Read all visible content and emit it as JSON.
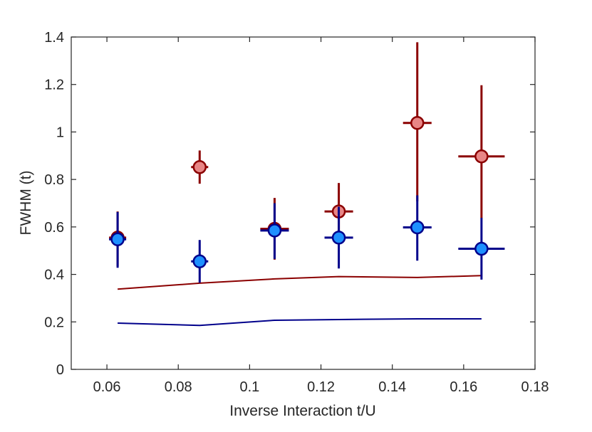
{
  "chart_data": {
    "type": "scatter",
    "xlabel": "Inverse Interaction t/U",
    "ylabel": "FWHM (t)",
    "xlim": [
      0.05,
      0.18
    ],
    "ylim": [
      0,
      1.4
    ],
    "xticks": [
      0.06,
      0.08,
      0.1,
      0.12,
      0.14,
      0.16,
      0.18
    ],
    "xtick_labels": [
      "0.06",
      "0.08",
      "0.1",
      "0.12",
      "0.14",
      "0.16",
      "0.18"
    ],
    "yticks": [
      0,
      0.2,
      0.4,
      0.6,
      0.8,
      1.0,
      1.2,
      1.4
    ],
    "ytick_labels": [
      "0",
      "0.2",
      "0.4",
      "0.6",
      "0.8",
      "1",
      "1.2",
      "1.4"
    ],
    "grid": false,
    "legend": "none",
    "series": [
      {
        "kind": "points",
        "color": "#8b0000",
        "fill": "#e88686",
        "x": [
          0.063,
          0.086,
          0.107,
          0.125,
          0.147,
          0.165
        ],
        "y": [
          0.555,
          0.852,
          0.592,
          0.665,
          1.038,
          0.897
        ],
        "yerr_low": [
          0.12,
          0.07,
          0.13,
          0.13,
          0.33,
          0.26
        ],
        "yerr_high": [
          0.11,
          0.07,
          0.13,
          0.12,
          0.34,
          0.3
        ],
        "xerr": [
          0.002,
          0.001,
          0.004,
          0.004,
          0.004,
          0.0065
        ]
      },
      {
        "kind": "points",
        "color": "#00008b",
        "fill": "#1e90ff",
        "x": [
          0.063,
          0.086,
          0.107,
          0.125,
          0.147,
          0.165
        ],
        "y": [
          0.548,
          0.455,
          0.585,
          0.555,
          0.598,
          0.508
        ],
        "yerr_low": [
          0.12,
          0.09,
          0.12,
          0.13,
          0.14,
          0.13
        ],
        "yerr_high": [
          0.115,
          0.09,
          0.115,
          0.13,
          0.135,
          0.13
        ],
        "xerr": [
          0.002,
          0.001,
          0.004,
          0.004,
          0.004,
          0.0065
        ]
      },
      {
        "kind": "line",
        "color": "#8b0000",
        "x": [
          0.063,
          0.086,
          0.107,
          0.125,
          0.147,
          0.165
        ],
        "y": [
          0.338,
          0.363,
          0.381,
          0.391,
          0.387,
          0.395
        ]
      },
      {
        "kind": "line",
        "color": "#00008b",
        "x": [
          0.063,
          0.086,
          0.107,
          0.125,
          0.147,
          0.165
        ],
        "y": [
          0.195,
          0.185,
          0.207,
          0.21,
          0.213,
          0.213
        ]
      }
    ]
  }
}
